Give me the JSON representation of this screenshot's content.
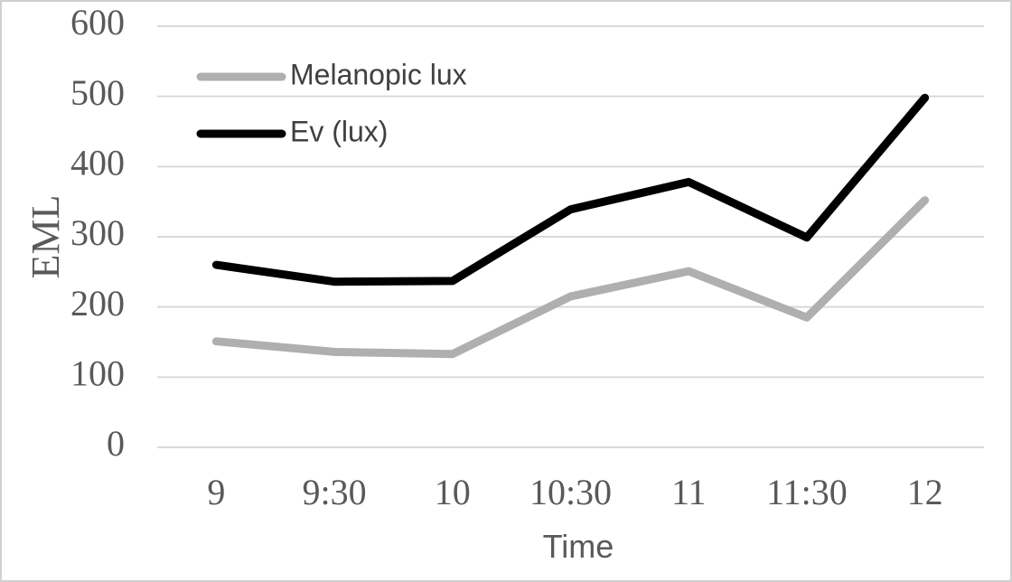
{
  "chart_data": {
    "type": "line",
    "title": "",
    "xlabel": "Time",
    "ylabel": "EML",
    "categories": [
      "9",
      "9:30",
      "10",
      "10:30",
      "11",
      "11:30",
      "12"
    ],
    "ylim": [
      0,
      600
    ],
    "yticks": [
      0,
      100,
      200,
      300,
      400,
      500,
      600
    ],
    "grid": true,
    "legend_position": "top-left",
    "series": [
      {
        "name": "Melanopic lux",
        "color": "#afafaf",
        "values": [
          151,
          136,
          133,
          215,
          251,
          185,
          352
        ]
      },
      {
        "name": "Ev (lux)",
        "color": "#000000",
        "values": [
          260,
          236,
          237,
          339,
          378,
          299,
          498
        ]
      }
    ]
  }
}
